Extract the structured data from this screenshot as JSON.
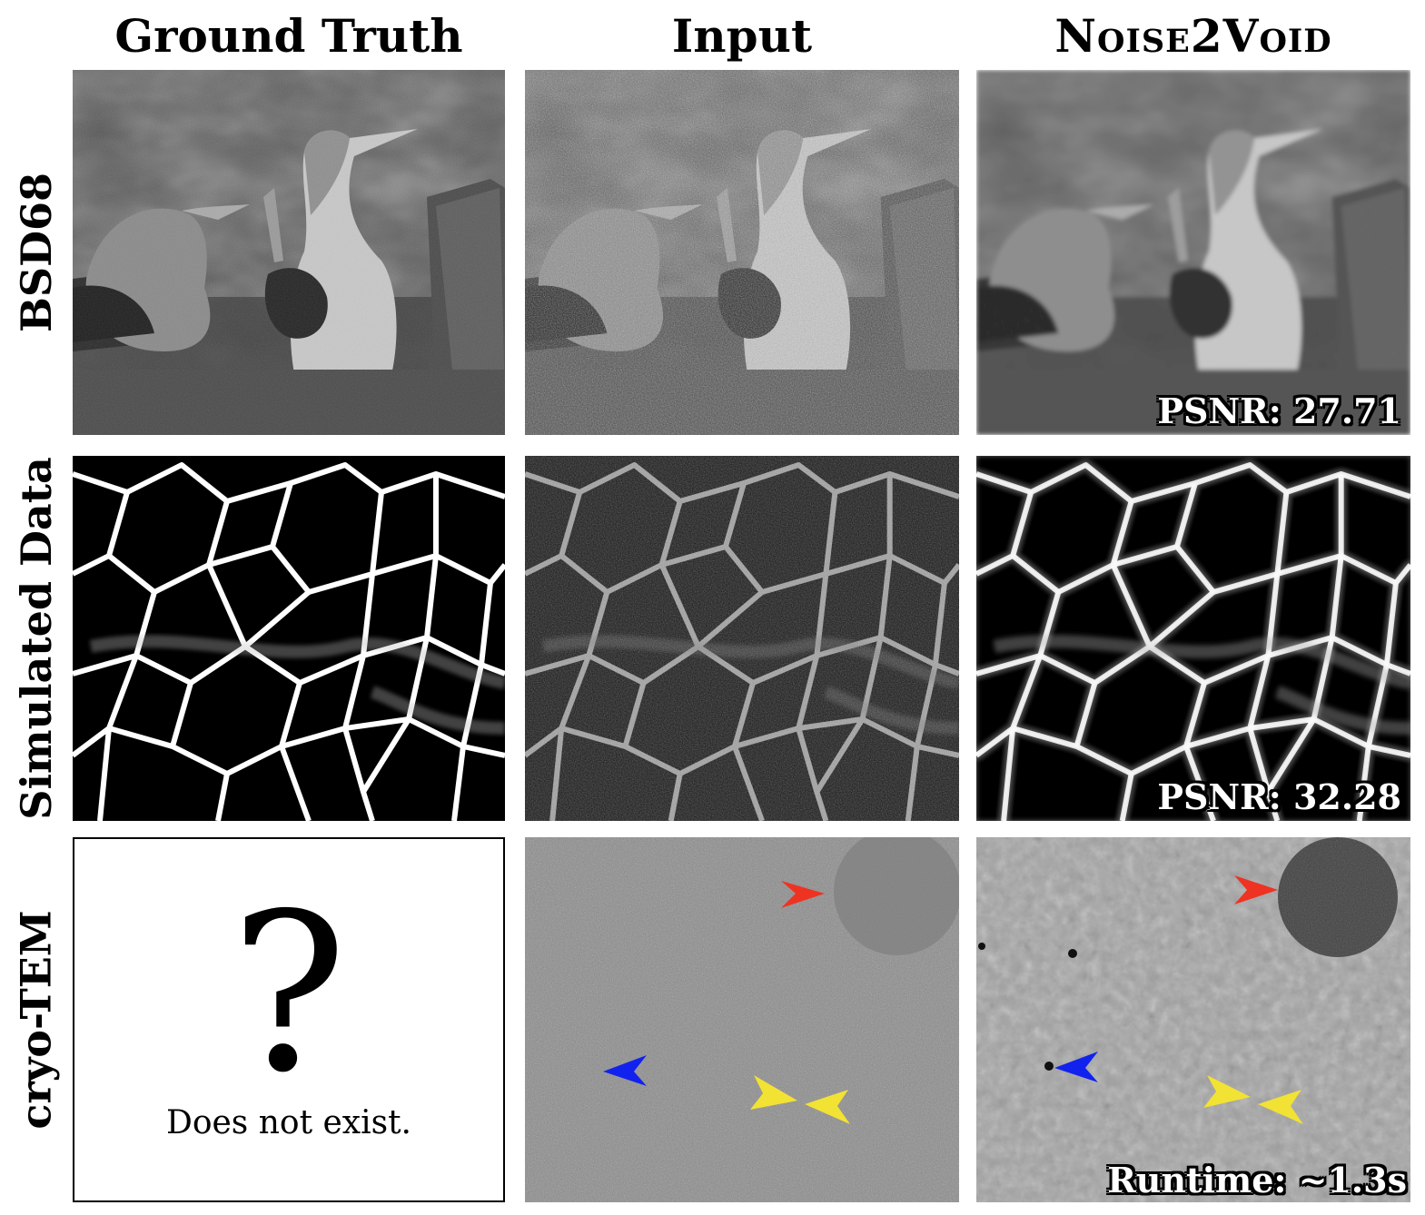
{
  "columns": {
    "ground_truth": "Ground Truth",
    "input": "Input",
    "noise2void": "Noise2Void"
  },
  "rows": {
    "bsd68": "BSD68",
    "simulated": "Simulated Data",
    "cryo_tem": "cryo-TEM"
  },
  "metrics": {
    "bsd68_psnr": "PSNR: 27.71",
    "simulated_psnr": "PSNR: 32.28",
    "cryo_runtime": "Runtime: ~1.3s"
  },
  "missing_ground_truth": {
    "symbol": "?",
    "text": "Does not exist."
  },
  "arrow_colors": {
    "red": "#ee3322",
    "blue": "#1122ee",
    "yellow": "#f2e233"
  }
}
